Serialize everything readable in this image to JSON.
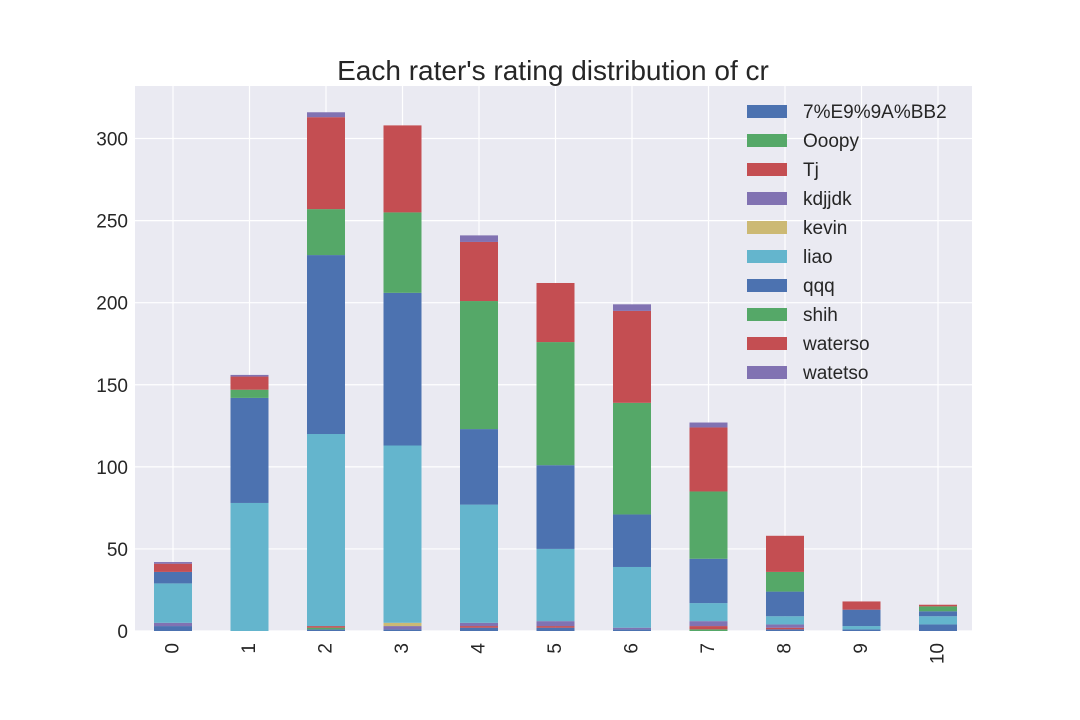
{
  "chart_data": {
    "type": "bar",
    "stacked": true,
    "title": "Each rater's rating distribution of cr",
    "categories": [
      "0",
      "1",
      "2",
      "3",
      "4",
      "5",
      "6",
      "7",
      "8",
      "9",
      "10"
    ],
    "ylim": [
      0,
      332
    ],
    "yticks": [
      0,
      50,
      100,
      150,
      200,
      250,
      300
    ],
    "grid": true,
    "legend_position": "top-right",
    "series": [
      {
        "name": "7%E9%9A%BB2",
        "color": "#4c72b0",
        "values": [
          0,
          0,
          0,
          1,
          0,
          0,
          0,
          0,
          0,
          0,
          0
        ]
      },
      {
        "name": "Ooopy",
        "color": "#55a868",
        "values": [
          0,
          0,
          1,
          0,
          0,
          0,
          0,
          0,
          0,
          0,
          0
        ]
      },
      {
        "name": "Tj",
        "color": "#c44e52",
        "values": [
          0,
          0,
          0,
          0,
          0,
          0,
          0,
          0,
          0,
          0,
          0
        ]
      },
      {
        "name": "kdjjdk",
        "color": "#8172b2",
        "values": [
          0,
          0,
          0,
          0,
          0,
          0,
          0,
          0,
          0,
          0,
          0
        ]
      },
      {
        "name": "kevin",
        "color": "#ccb974",
        "values": [
          0,
          0,
          0,
          2,
          0,
          0,
          0,
          0,
          0,
          0,
          0
        ]
      },
      {
        "name": "liao",
        "color": "#64b5cd",
        "values": [
          24,
          78,
          117,
          108,
          72,
          44,
          37,
          11,
          5,
          2,
          5
        ]
      },
      {
        "name": "qqq",
        "color": "#4c72b0",
        "values": [
          7,
          64,
          109,
          93,
          46,
          51,
          32,
          27,
          15,
          10,
          3
        ]
      },
      {
        "name": "shih",
        "color": "#55a868",
        "values": [
          0,
          5,
          28,
          49,
          78,
          75,
          68,
          41,
          12,
          0,
          3
        ]
      },
      {
        "name": "waterso",
        "color": "#c44e52",
        "values": [
          5,
          8,
          56,
          53,
          36,
          36,
          56,
          39,
          22,
          5,
          1
        ]
      },
      {
        "name": "watetso",
        "color": "#8172b2",
        "values": [
          1,
          1,
          3,
          0,
          4,
          0,
          4,
          3,
          0,
          0,
          0
        ]
      }
    ],
    "base_values": {
      "comment_free": true,
      "series_names": [
        "7%E9%9A%BB2",
        "Ooopy",
        "Tj",
        "kdjjdk"
      ],
      "first": [
        3,
        0,
        1,
        0,
        2,
        2,
        1,
        0,
        1,
        1,
        4
      ],
      "second": [
        0,
        0,
        0,
        0,
        0,
        0,
        0,
        1,
        0,
        0,
        0
      ],
      "third": [
        0,
        0,
        1,
        0,
        1,
        1,
        0,
        2,
        1,
        0,
        0
      ],
      "fourth": [
        2,
        0,
        0,
        2,
        2,
        3,
        1,
        3,
        2,
        0,
        0
      ]
    }
  }
}
